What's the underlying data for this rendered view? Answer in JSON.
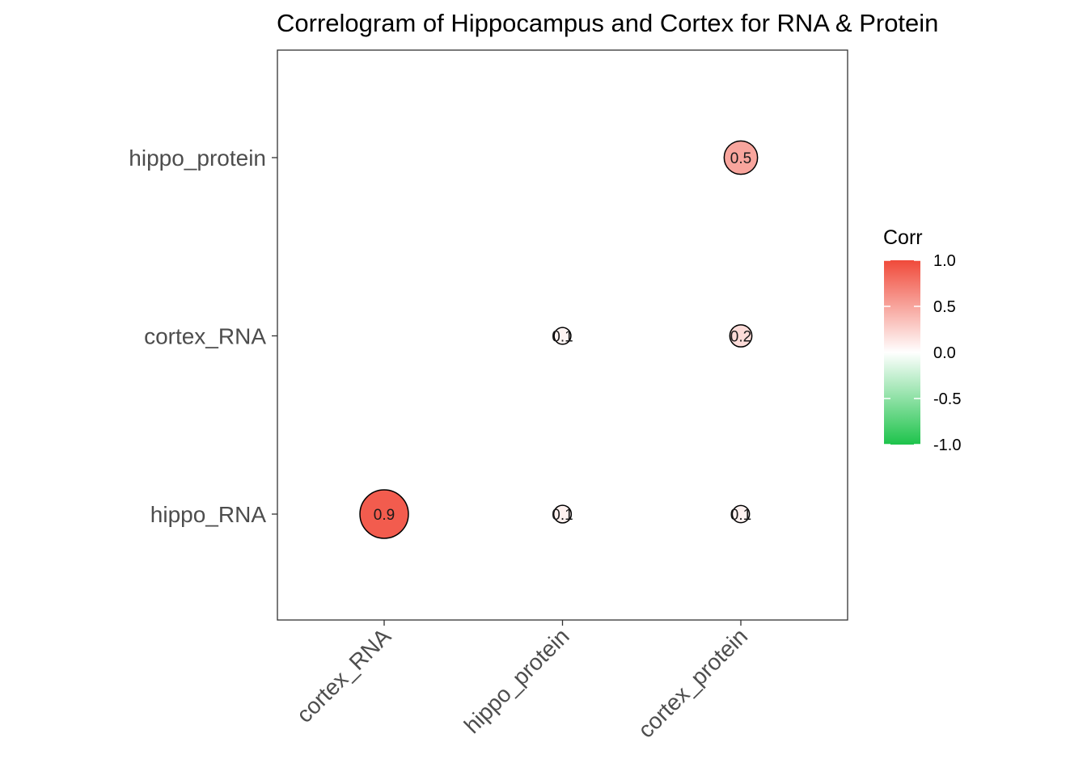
{
  "chart_data": {
    "type": "scatter",
    "subtype": "correlogram",
    "title": "Correlogram of Hippocampus and Cortex for RNA & Protein",
    "x_categories": [
      "cortex_RNA",
      "hippo_protein",
      "cortex_protein"
    ],
    "y_categories": [
      "hippo_RNA",
      "cortex_RNA",
      "hippo_protein"
    ],
    "cells": [
      {
        "x": "cortex_RNA",
        "y": "hippo_RNA",
        "value": 0.9,
        "label": "0.9"
      },
      {
        "x": "hippo_protein",
        "y": "hippo_RNA",
        "value": 0.08,
        "label": "0.1"
      },
      {
        "x": "cortex_protein",
        "y": "hippo_RNA",
        "value": 0.07,
        "label": "0.1"
      },
      {
        "x": "hippo_protein",
        "y": "cortex_RNA",
        "value": 0.06,
        "label": "0.1"
      },
      {
        "x": "cortex_protein",
        "y": "cortex_RNA",
        "value": 0.2,
        "label": "0.2"
      },
      {
        "x": "cortex_protein",
        "y": "hippo_protein",
        "value": 0.5,
        "label": "0.5"
      }
    ],
    "legend": {
      "title": "Corr",
      "ticks": [
        "1.0",
        "0.5",
        "0.0",
        "-0.5",
        "-1.0"
      ],
      "tick_values": [
        1.0,
        0.5,
        0.0,
        -0.5,
        -1.0
      ],
      "range": [
        -1,
        1
      ],
      "colors": {
        "high": "#F04A3A",
        "mid": "#FFFFFF",
        "low": "#1DC34B"
      },
      "placement": "right"
    },
    "grid": false
  }
}
